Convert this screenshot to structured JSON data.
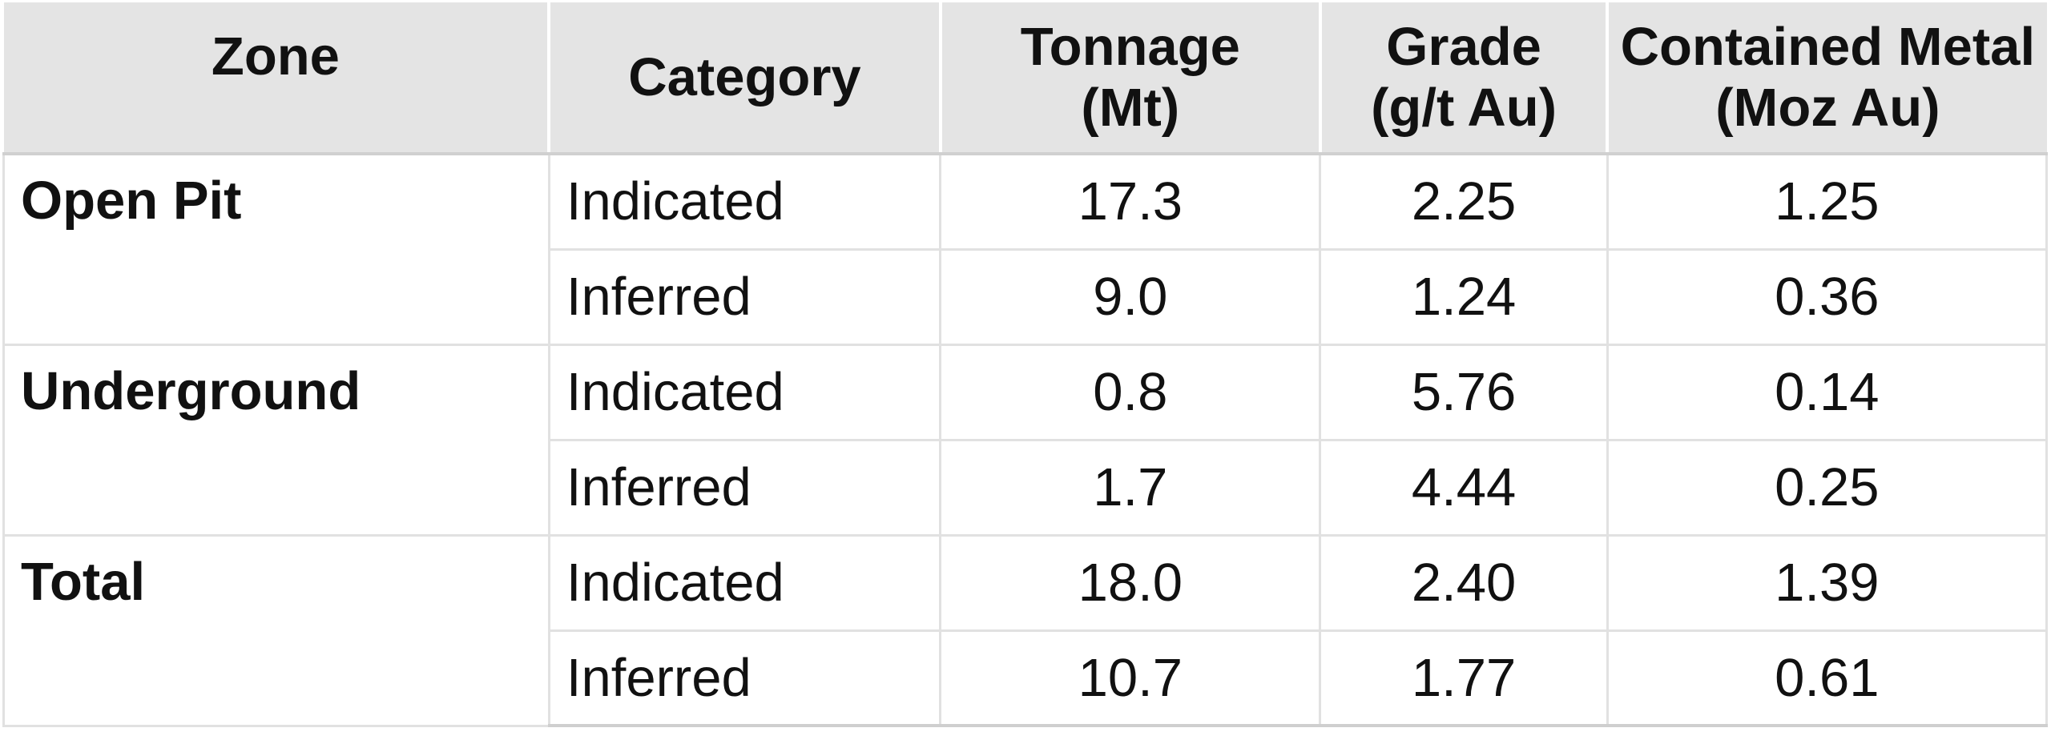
{
  "table": {
    "columns": [
      {
        "label": "Zone"
      },
      {
        "label": "Category"
      },
      {
        "label": "Tonnage",
        "unit": "(Mt)"
      },
      {
        "label": "Grade",
        "unit": "(g/t Au)"
      },
      {
        "label": "Contained Metal",
        "unit": "(Moz Au)"
      }
    ],
    "groups": [
      {
        "zone": "Open Pit",
        "rows": [
          {
            "category": "Indicated",
            "tonnage": "17.3",
            "grade": "2.25",
            "metal": "1.25"
          },
          {
            "category": "Inferred",
            "tonnage": "9.0",
            "grade": "1.24",
            "metal": "0.36"
          }
        ]
      },
      {
        "zone": "Underground",
        "rows": [
          {
            "category": "Indicated",
            "tonnage": "0.8",
            "grade": "5.76",
            "metal": "0.14"
          },
          {
            "category": "Inferred",
            "tonnage": "1.7",
            "grade": "4.44",
            "metal": "0.25"
          }
        ]
      },
      {
        "zone": "Total",
        "rows": [
          {
            "category": "Indicated",
            "tonnage": "18.0",
            "grade": "2.40",
            "metal": "1.39"
          },
          {
            "category": "Inferred",
            "tonnage": "10.7",
            "grade": "1.77",
            "metal": "0.61"
          }
        ]
      }
    ]
  },
  "colors": {
    "header_background": "#e4e4e4",
    "header_divider": "#ffffff",
    "header_bottom_border": "#d0d0d0",
    "gridline": "#e1e1e1",
    "text": "#111111",
    "body_background": "#ffffff"
  }
}
